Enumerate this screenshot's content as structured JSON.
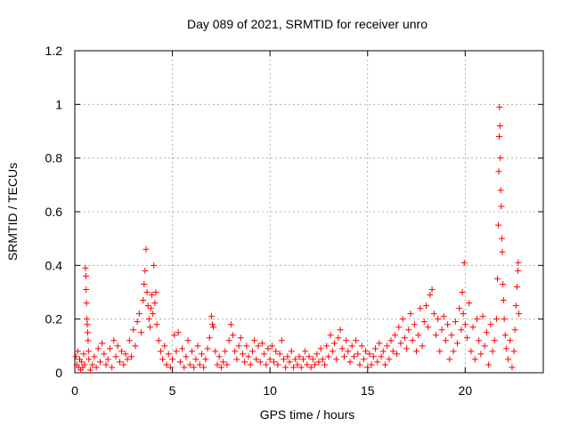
{
  "chart_data": {
    "type": "scatter",
    "title": "Day 089 of 2021, SRMTID for receiver unro",
    "xlabel": "GPS time / hours",
    "ylabel": "SRMTID / TECUs",
    "xlim": [
      0,
      24
    ],
    "ylim": [
      0,
      1.2
    ],
    "xticks": [
      0,
      5,
      10,
      15,
      20
    ],
    "yticks": [
      0,
      0.2,
      0.4,
      0.6,
      0.8,
      1,
      1.2
    ],
    "xtick_labels": [
      "0",
      "5",
      "10",
      "15",
      "20"
    ],
    "ytick_labels": [
      "0",
      "0.2",
      "0.4",
      "0.6",
      "0.8",
      "1",
      "1.2"
    ],
    "grid": true,
    "marker": "+",
    "color": "#ff0000",
    "series": [
      {
        "name": "SRMTID",
        "points": [
          [
            0.05,
            0.06
          ],
          [
            0.1,
            0.03
          ],
          [
            0.15,
            0.08
          ],
          [
            0.2,
            0.02
          ],
          [
            0.25,
            0.05
          ],
          [
            0.3,
            0.01
          ],
          [
            0.35,
            0.04
          ],
          [
            0.4,
            0.02
          ],
          [
            0.45,
            0.07
          ],
          [
            0.5,
            0.03
          ],
          [
            0.55,
            0.39
          ],
          [
            0.57,
            0.36
          ],
          [
            0.58,
            0.31
          ],
          [
            0.6,
            0.26
          ],
          [
            0.62,
            0.2
          ],
          [
            0.64,
            0.18
          ],
          [
            0.66,
            0.15
          ],
          [
            0.68,
            0.12
          ],
          [
            0.7,
            0.08
          ],
          [
            0.72,
            0.05
          ],
          [
            0.8,
            0.01
          ],
          [
            0.9,
            0.03
          ],
          [
            1.0,
            0.06
          ],
          [
            1.1,
            0.02
          ],
          [
            1.2,
            0.09
          ],
          [
            1.3,
            0.04
          ],
          [
            1.4,
            0.11
          ],
          [
            1.5,
            0.07
          ],
          [
            1.6,
            0.03
          ],
          [
            1.7,
            0.05
          ],
          [
            1.8,
            0.09
          ],
          [
            1.9,
            0.02
          ],
          [
            2.0,
            0.12
          ],
          [
            2.1,
            0.06
          ],
          [
            2.2,
            0.1
          ],
          [
            2.3,
            0.04
          ],
          [
            2.4,
            0.08
          ],
          [
            2.5,
            0.03
          ],
          [
            2.6,
            0.07
          ],
          [
            2.7,
            0.05
          ],
          [
            2.8,
            0.12
          ],
          [
            2.9,
            0.06
          ],
          [
            3.0,
            0.16
          ],
          [
            3.1,
            0.1
          ],
          [
            3.2,
            0.19
          ],
          [
            3.3,
            0.22
          ],
          [
            3.4,
            0.15
          ],
          [
            3.5,
            0.27
          ],
          [
            3.55,
            0.33
          ],
          [
            3.6,
            0.38
          ],
          [
            3.65,
            0.46
          ],
          [
            3.7,
            0.3
          ],
          [
            3.75,
            0.25
          ],
          [
            3.8,
            0.2
          ],
          [
            3.85,
            0.17
          ],
          [
            3.9,
            0.24
          ],
          [
            3.95,
            0.29
          ],
          [
            4.0,
            0.22
          ],
          [
            4.05,
            0.4
          ],
          [
            4.1,
            0.26
          ],
          [
            4.15,
            0.3
          ],
          [
            4.2,
            0.18
          ],
          [
            4.3,
            0.12
          ],
          [
            4.4,
            0.08
          ],
          [
            4.5,
            0.05
          ],
          [
            4.6,
            0.1
          ],
          [
            4.7,
            0.03
          ],
          [
            4.8,
            0.07
          ],
          [
            4.9,
            0.02
          ],
          [
            5.0,
            0.05
          ],
          [
            5.1,
            0.14
          ],
          [
            5.2,
            0.08
          ],
          [
            5.3,
            0.15
          ],
          [
            5.4,
            0.04
          ],
          [
            5.5,
            0.09
          ],
          [
            5.6,
            0.02
          ],
          [
            5.7,
            0.06
          ],
          [
            5.8,
            0.12
          ],
          [
            5.9,
            0.03
          ],
          [
            6.0,
            0.08
          ],
          [
            6.1,
            0.02
          ],
          [
            6.2,
            0.05
          ],
          [
            6.3,
            0.1
          ],
          [
            6.4,
            0.03
          ],
          [
            6.5,
            0.07
          ],
          [
            6.6,
            0.02
          ],
          [
            6.7,
            0.05
          ],
          [
            6.8,
            0.09
          ],
          [
            6.9,
            0.13
          ],
          [
            7.0,
            0.21
          ],
          [
            7.05,
            0.18
          ],
          [
            7.1,
            0.17
          ],
          [
            7.2,
            0.08
          ],
          [
            7.3,
            0.03
          ],
          [
            7.4,
            0.06
          ],
          [
            7.5,
            0.02
          ],
          [
            7.6,
            0.04
          ],
          [
            7.7,
            0.08
          ],
          [
            7.8,
            0.03
          ],
          [
            7.9,
            0.12
          ],
          [
            8.0,
            0.18
          ],
          [
            8.1,
            0.14
          ],
          [
            8.2,
            0.08
          ],
          [
            8.3,
            0.05
          ],
          [
            8.4,
            0.1
          ],
          [
            8.5,
            0.13
          ],
          [
            8.6,
            0.07
          ],
          [
            8.7,
            0.04
          ],
          [
            8.8,
            0.1
          ],
          [
            8.9,
            0.06
          ],
          [
            9.0,
            0.03
          ],
          [
            9.1,
            0.08
          ],
          [
            9.2,
            0.12
          ],
          [
            9.3,
            0.05
          ],
          [
            9.4,
            0.1
          ],
          [
            9.5,
            0.04
          ],
          [
            9.6,
            0.11
          ],
          [
            9.7,
            0.07
          ],
          [
            9.8,
            0.03
          ],
          [
            9.9,
            0.09
          ],
          [
            10.0,
            0.05
          ],
          [
            10.1,
            0.1
          ],
          [
            10.2,
            0.04
          ],
          [
            10.3,
            0.08
          ],
          [
            10.4,
            0.03
          ],
          [
            10.5,
            0.07
          ],
          [
            10.6,
            0.12
          ],
          [
            10.7,
            0.05
          ],
          [
            10.8,
            0.02
          ],
          [
            10.9,
            0.06
          ],
          [
            11.0,
            0.04
          ],
          [
            11.1,
            0.08
          ],
          [
            11.2,
            0.02
          ],
          [
            11.3,
            0.05
          ],
          [
            11.4,
            0.03
          ],
          [
            11.5,
            0.06
          ],
          [
            11.6,
            0.02
          ],
          [
            11.7,
            0.05
          ],
          [
            11.8,
            0.08
          ],
          [
            11.9,
            0.03
          ],
          [
            12.0,
            0.06
          ],
          [
            12.1,
            0.02
          ],
          [
            12.2,
            0.05
          ],
          [
            12.3,
            0.03
          ],
          [
            12.4,
            0.07
          ],
          [
            12.5,
            0.04
          ],
          [
            12.6,
            0.09
          ],
          [
            12.7,
            0.05
          ],
          [
            12.8,
            0.03
          ],
          [
            12.9,
            0.1
          ],
          [
            13.0,
            0.06
          ],
          [
            13.1,
            0.14
          ],
          [
            13.2,
            0.08
          ],
          [
            13.3,
            0.11
          ],
          [
            13.4,
            0.05
          ],
          [
            13.5,
            0.13
          ],
          [
            13.6,
            0.16
          ],
          [
            13.7,
            0.09
          ],
          [
            13.8,
            0.06
          ],
          [
            13.9,
            0.12
          ],
          [
            14.0,
            0.08
          ],
          [
            14.1,
            0.04
          ],
          [
            14.2,
            0.1
          ],
          [
            14.3,
            0.06
          ],
          [
            14.4,
            0.12
          ],
          [
            14.5,
            0.07
          ],
          [
            14.6,
            0.03
          ],
          [
            14.7,
            0.1
          ],
          [
            14.8,
            0.05
          ],
          [
            14.9,
            0.08
          ],
          [
            15.0,
            0.02
          ],
          [
            15.1,
            0.07
          ],
          [
            15.2,
            0.03
          ],
          [
            15.3,
            0.06
          ],
          [
            15.4,
            0.09
          ],
          [
            15.5,
            0.04
          ],
          [
            15.6,
            0.11
          ],
          [
            15.7,
            0.06
          ],
          [
            15.8,
            0.08
          ],
          [
            15.9,
            0.03
          ],
          [
            16.0,
            0.1
          ],
          [
            16.1,
            0.05
          ],
          [
            16.2,
            0.12
          ],
          [
            16.3,
            0.08
          ],
          [
            16.4,
            0.14
          ],
          [
            16.5,
            0.07
          ],
          [
            16.6,
            0.17
          ],
          [
            16.7,
            0.11
          ],
          [
            16.8,
            0.2
          ],
          [
            16.9,
            0.13
          ],
          [
            17.0,
            0.09
          ],
          [
            17.1,
            0.16
          ],
          [
            17.2,
            0.22
          ],
          [
            17.3,
            0.12
          ],
          [
            17.4,
            0.18
          ],
          [
            17.5,
            0.08
          ],
          [
            17.6,
            0.14
          ],
          [
            17.7,
            0.24
          ],
          [
            17.8,
            0.1
          ],
          [
            17.9,
            0.19
          ],
          [
            18.0,
            0.25
          ],
          [
            18.1,
            0.17
          ],
          [
            18.2,
            0.29
          ],
          [
            18.3,
            0.31
          ],
          [
            18.4,
            0.22
          ],
          [
            18.5,
            0.14
          ],
          [
            18.6,
            0.2
          ],
          [
            18.7,
            0.08
          ],
          [
            18.8,
            0.16
          ],
          [
            18.9,
            0.21
          ],
          [
            19.0,
            0.12
          ],
          [
            19.1,
            0.18
          ],
          [
            19.2,
            0.05
          ],
          [
            19.3,
            0.14
          ],
          [
            19.4,
            0.08
          ],
          [
            19.5,
            0.19
          ],
          [
            19.6,
            0.11
          ],
          [
            19.7,
            0.24
          ],
          [
            19.8,
            0.16
          ],
          [
            19.85,
            0.3
          ],
          [
            19.9,
            0.22
          ],
          [
            19.95,
            0.41
          ],
          [
            20.0,
            0.18
          ],
          [
            20.1,
            0.13
          ],
          [
            20.2,
            0.26
          ],
          [
            20.3,
            0.08
          ],
          [
            20.4,
            0.17
          ],
          [
            20.5,
            0.05
          ],
          [
            20.6,
            0.2
          ],
          [
            20.7,
            0.12
          ],
          [
            20.8,
            0.07
          ],
          [
            20.9,
            0.21
          ],
          [
            21.0,
            0.1
          ],
          [
            21.1,
            0.15
          ],
          [
            21.2,
            0.03
          ],
          [
            21.3,
            0.18
          ],
          [
            21.4,
            0.08
          ],
          [
            21.5,
            0.12
          ],
          [
            21.6,
            0.2
          ],
          [
            21.65,
            0.35
          ],
          [
            21.7,
            0.55
          ],
          [
            21.72,
            0.75
          ],
          [
            21.74,
            0.88
          ],
          [
            21.76,
            0.99
          ],
          [
            21.78,
            0.92
          ],
          [
            21.8,
            0.8
          ],
          [
            21.82,
            0.68
          ],
          [
            21.85,
            0.62
          ],
          [
            21.88,
            0.5
          ],
          [
            21.9,
            0.45
          ],
          [
            21.93,
            0.33
          ],
          [
            21.96,
            0.27
          ],
          [
            22.0,
            0.2
          ],
          [
            22.05,
            0.14
          ],
          [
            22.1,
            0.09
          ],
          [
            22.2,
            0.05
          ],
          [
            22.3,
            0.12
          ],
          [
            22.4,
            0.02
          ],
          [
            22.5,
            0.08
          ],
          [
            22.55,
            0.16
          ],
          [
            22.6,
            0.25
          ],
          [
            22.65,
            0.32
          ],
          [
            22.7,
            0.38
          ],
          [
            22.72,
            0.41
          ],
          [
            22.75,
            0.22
          ]
        ]
      }
    ]
  }
}
